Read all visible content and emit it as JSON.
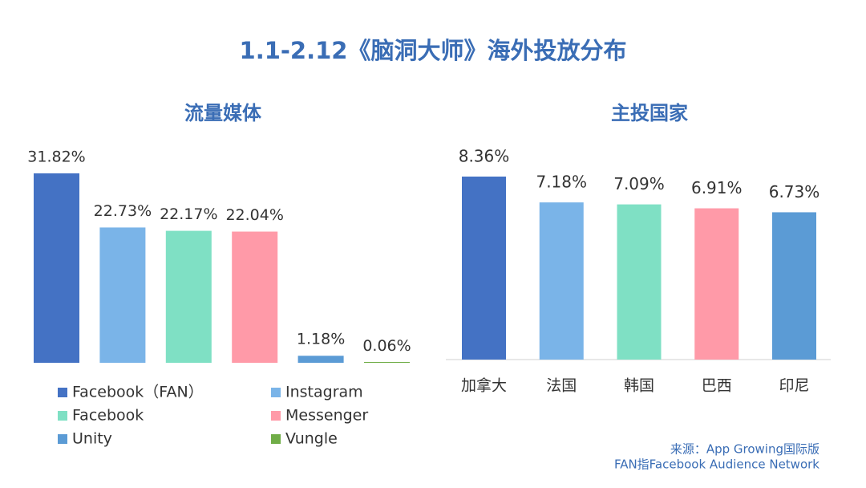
{
  "title": "1.1-2.12《脑洞大师》海外投放分布",
  "chart_data": [
    {
      "type": "bar",
      "title": "流量媒体",
      "series": [
        {
          "name": "Facebook（FAN）",
          "color": "#4472c4",
          "values": [
            31.82
          ],
          "value_labels": [
            "31.82%"
          ]
        },
        {
          "name": "Instagram",
          "color": "#7ab4e8",
          "values": [
            22.73
          ],
          "value_labels": [
            "22.73%"
          ]
        },
        {
          "name": "Facebook",
          "color": "#7fe0c4",
          "values": [
            22.17
          ],
          "value_labels": [
            "22.17%"
          ]
        },
        {
          "name": "Messenger",
          "color": "#ff9aa8",
          "values": [
            22.04
          ],
          "value_labels": [
            "22.04%"
          ]
        },
        {
          "name": "Unity",
          "color": "#5b9bd5",
          "values": [
            1.18
          ],
          "value_labels": [
            "1.18%"
          ]
        },
        {
          "name": "Vungle",
          "color": "#70ad47",
          "values": [
            0.06
          ],
          "value_labels": [
            "0.06%"
          ]
        }
      ]
    },
    {
      "type": "bar",
      "title": "主投国家",
      "categories": [
        "加拿大",
        "法国",
        "韩国",
        "巴西",
        "印尼"
      ],
      "values": [
        8.36,
        7.18,
        7.09,
        6.91,
        6.73
      ],
      "value_labels": [
        "8.36%",
        "7.18%",
        "7.09%",
        "6.91%",
        "6.73%"
      ],
      "colors": [
        "#4472c4",
        "#7ab4e8",
        "#7fe0c4",
        "#ff9aa8",
        "#5b9bd5"
      ]
    }
  ],
  "source_notes": [
    "来源：App Growing国际版",
    "FAN指Facebook Audience Network"
  ]
}
